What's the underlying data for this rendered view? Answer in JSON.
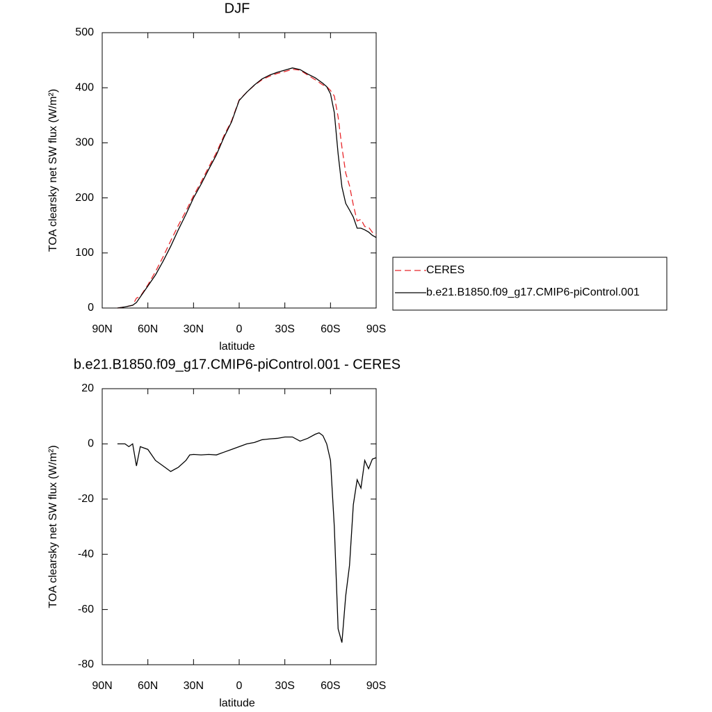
{
  "chart_data": [
    {
      "type": "line",
      "title": "DJF",
      "xlabel": "latitude",
      "ylabel": "TOA clearsky net SW flux (W/m²)",
      "x": [
        80,
        75,
        70,
        67.5,
        65,
        60,
        55,
        50,
        45,
        40,
        35,
        30,
        25,
        20,
        15,
        10,
        5,
        0,
        -5,
        -10,
        -15,
        -20,
        -25,
        -30,
        -35,
        -40,
        -45,
        -50,
        -55,
        -57.5,
        -60,
        -62.5,
        -65,
        -67.5,
        -70,
        -72.5,
        -75,
        -77.5,
        -80,
        -82.5,
        -85,
        -87.5,
        -90
      ],
      "series": [
        {
          "name": "CERES",
          "color": "#e8262a",
          "linestyle": "dashed",
          "values": [
            0,
            2,
            5,
            18,
            21,
            42,
            66,
            93,
            122,
            150,
            176,
            204,
            229,
            256,
            282,
            313,
            340,
            378,
            392,
            404.5,
            414.5,
            421,
            426,
            429.5,
            433.5,
            432,
            423,
            414.5,
            405,
            402,
            395,
            385,
            347,
            292,
            245,
            222,
            187,
            158,
            161,
            148,
            147,
            137.5,
            133
          ]
        },
        {
          "name": "b.e21.B1850.f09_g17.CMIP6-piControl.001",
          "color": "#000000",
          "linestyle": "solid",
          "values": [
            0,
            2,
            5,
            10,
            20,
            40,
            60,
            85,
            112,
            142,
            170,
            200,
            225,
            252,
            278,
            310,
            338,
            377,
            392,
            405,
            416,
            423,
            428,
            432,
            436,
            433,
            425,
            418,
            408,
            402,
            389,
            355,
            280,
            220,
            190,
            178,
            165,
            145,
            145,
            142,
            138,
            132,
            128
          ]
        }
      ],
      "xlim": [
        90,
        -90
      ],
      "xticks": [
        {
          "value": 90,
          "label": "90N"
        },
        {
          "value": 60,
          "label": "60N"
        },
        {
          "value": 30,
          "label": "30N"
        },
        0,
        {
          "value": -30,
          "label": "30S"
        },
        {
          "value": -60,
          "label": "60S"
        },
        {
          "value": -90,
          "label": "90S"
        }
      ],
      "ylim": [
        0,
        500
      ],
      "yticks": [
        0,
        100,
        200,
        300,
        400,
        500
      ],
      "legend": "right"
    },
    {
      "type": "line",
      "title": "b.e21.B1850.f09_g17.CMIP6-piControl.001 - CERES",
      "xlabel": "latitude",
      "ylabel": "TOA clearsky net SW flux (W/m²)",
      "x": [
        80,
        75,
        72.5,
        70,
        67.5,
        65,
        60,
        57.5,
        55,
        50,
        45,
        40,
        35,
        32.5,
        30,
        25,
        20,
        15,
        10,
        5,
        0,
        -5,
        -10,
        -15,
        -20,
        -25,
        -30,
        -35,
        -40,
        -45,
        -50,
        -52.5,
        -55,
        -57.5,
        -60,
        -62.5,
        -65,
        -67.5,
        -70,
        -72.5,
        -75,
        -77.5,
        -80,
        -82.5,
        -85,
        -87.5,
        -90
      ],
      "series": [
        {
          "color": "#000000",
          "linestyle": "solid",
          "values": [
            0,
            0,
            -1,
            0,
            -8,
            -1,
            -2,
            -4,
            -6,
            -8,
            -10,
            -8.5,
            -6,
            -4,
            -3.8,
            -4,
            -3.8,
            -4,
            -3,
            -2,
            -1,
            0,
            0.5,
            1.5,
            1.8,
            2,
            2.5,
            2.5,
            1,
            2,
            3.5,
            4,
            3,
            0,
            -6,
            -30,
            -67,
            -72,
            -55,
            -44,
            -22,
            -13,
            -16,
            -6,
            -9,
            -5.5,
            -5
          ]
        }
      ],
      "xlim": [
        90,
        -90
      ],
      "xticks": [
        {
          "value": 90,
          "label": "90N"
        },
        {
          "value": 60,
          "label": "60N"
        },
        {
          "value": 30,
          "label": "30N"
        },
        0,
        {
          "value": -30,
          "label": "30S"
        },
        {
          "value": -60,
          "label": "60S"
        },
        {
          "value": -90,
          "label": "90S"
        }
      ],
      "ylim": [
        -80,
        20
      ],
      "yticks": [
        -80,
        -60,
        -40,
        -20,
        0,
        20
      ]
    }
  ]
}
